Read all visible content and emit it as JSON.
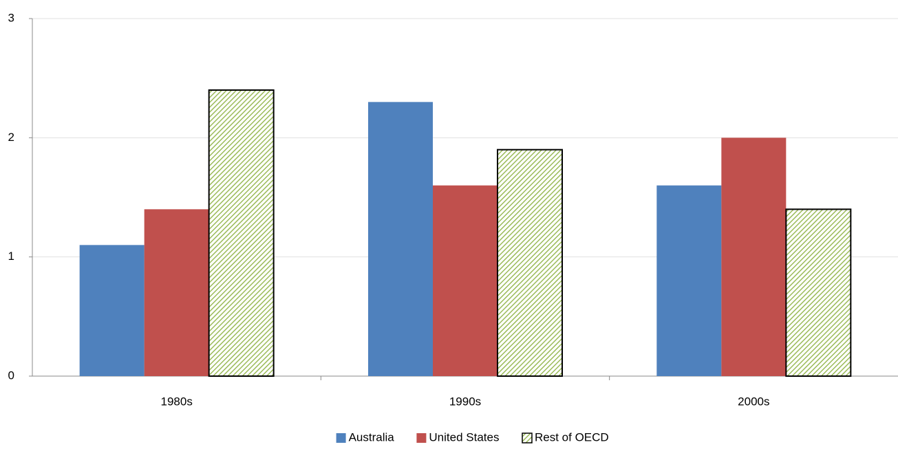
{
  "chart_data": {
    "type": "bar",
    "categories": [
      "1980s",
      "1990s",
      "2000s"
    ],
    "series": [
      {
        "name": "Australia",
        "color": "#4f81bd",
        "values": [
          1.1,
          2.3,
          1.6
        ]
      },
      {
        "name": "United States",
        "color": "#c0504d",
        "values": [
          1.4,
          1.6,
          2.0
        ]
      },
      {
        "name": "Rest of OECD",
        "color": "#9bbb59",
        "pattern": "diagonal-hatch",
        "edgecolor": "#000000",
        "values": [
          2.4,
          1.9,
          1.4
        ]
      }
    ],
    "ylim": [
      0,
      3
    ],
    "yticks": [
      0,
      1,
      2,
      3
    ],
    "grid": true,
    "legend": "bottom"
  }
}
